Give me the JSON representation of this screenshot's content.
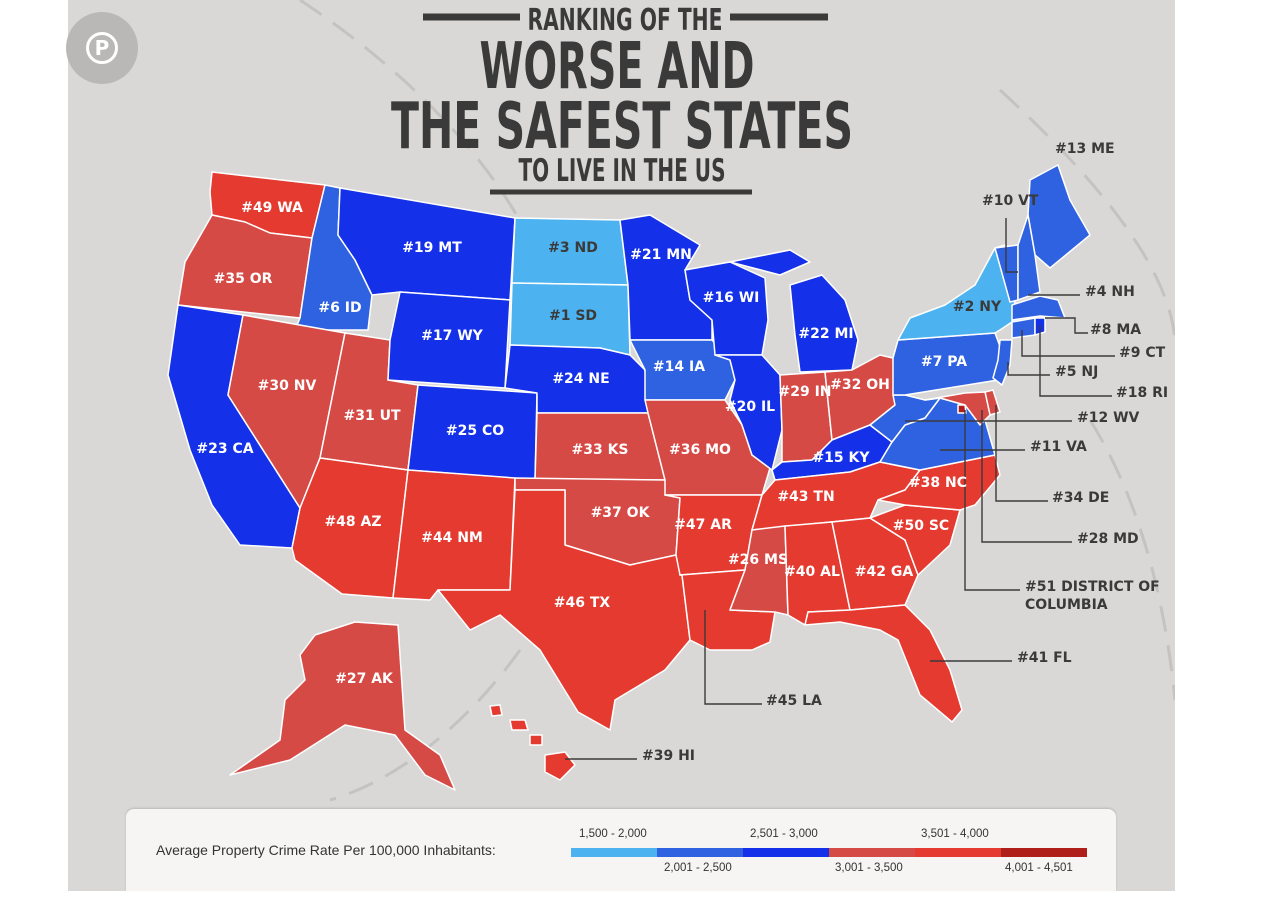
{
  "title": {
    "line1": "RANKING OF THE",
    "line2": "WORSE AND",
    "line3": "THE SAFEST STATES",
    "line4": "TO LIVE IN THE US"
  },
  "legend": {
    "title": "Average Property Crime Rate Per 100,000 Inhabitants:",
    "bins": [
      {
        "label": "1,500 - 2,000",
        "color": "#4db3f0"
      },
      {
        "label": "2,001 - 2,500",
        "color": "#2f62e0"
      },
      {
        "label": "2,501 - 3,000",
        "color": "#1430e8"
      },
      {
        "label": "3,001 - 3,500",
        "color": "#d64a46"
      },
      {
        "label": "3,501 - 4,000",
        "color": "#e53a30"
      },
      {
        "label": "4,001 - 4,501",
        "color": "#b01e1a"
      }
    ]
  },
  "states": [
    {
      "id": "WA",
      "label": "#49 WA",
      "rank": 49,
      "bin": 4
    },
    {
      "id": "OR",
      "label": "#35 OR",
      "rank": 35,
      "bin": 3
    },
    {
      "id": "CA",
      "label": "#23 CA",
      "rank": 23,
      "bin": 2
    },
    {
      "id": "ID",
      "label": "#6 ID",
      "rank": 6,
      "bin": 1
    },
    {
      "id": "NV",
      "label": "#30 NV",
      "rank": 30,
      "bin": 3
    },
    {
      "id": "UT",
      "label": "#31 UT",
      "rank": 31,
      "bin": 3
    },
    {
      "id": "AZ",
      "label": "#48 AZ",
      "rank": 48,
      "bin": 4
    },
    {
      "id": "MT",
      "label": "#19 MT",
      "rank": 19,
      "bin": 2
    },
    {
      "id": "WY",
      "label": "#17 WY",
      "rank": 17,
      "bin": 2
    },
    {
      "id": "CO",
      "label": "#25 CO",
      "rank": 25,
      "bin": 2
    },
    {
      "id": "NM",
      "label": "#44 NM",
      "rank": 44,
      "bin": 4
    },
    {
      "id": "ND",
      "label": "#3 ND",
      "rank": 3,
      "bin": 0
    },
    {
      "id": "SD",
      "label": "#1 SD",
      "rank": 1,
      "bin": 0
    },
    {
      "id": "NE",
      "label": "#24 NE",
      "rank": 24,
      "bin": 2
    },
    {
      "id": "KS",
      "label": "#33 KS",
      "rank": 33,
      "bin": 3
    },
    {
      "id": "OK",
      "label": "#37 OK",
      "rank": 37,
      "bin": 3
    },
    {
      "id": "TX",
      "label": "#46 TX",
      "rank": 46,
      "bin": 4
    },
    {
      "id": "MN",
      "label": "#21 MN",
      "rank": 21,
      "bin": 2
    },
    {
      "id": "IA",
      "label": "#14 IA",
      "rank": 14,
      "bin": 1
    },
    {
      "id": "MO",
      "label": "#36 MO",
      "rank": 36,
      "bin": 3
    },
    {
      "id": "AR",
      "label": "#47 AR",
      "rank": 47,
      "bin": 4
    },
    {
      "id": "LA",
      "label": "#45 LA",
      "rank": 45,
      "bin": 4
    },
    {
      "id": "WI",
      "label": "#16 WI",
      "rank": 16,
      "bin": 2
    },
    {
      "id": "IL",
      "label": "#20 IL",
      "rank": 20,
      "bin": 2
    },
    {
      "id": "MI",
      "label": "#22 MI",
      "rank": 22,
      "bin": 2
    },
    {
      "id": "IN",
      "label": "#29 IN",
      "rank": 29,
      "bin": 3
    },
    {
      "id": "OH",
      "label": "#32 OH",
      "rank": 32,
      "bin": 3
    },
    {
      "id": "KY",
      "label": "#15 KY",
      "rank": 15,
      "bin": 2
    },
    {
      "id": "TN",
      "label": "#43 TN",
      "rank": 43,
      "bin": 4
    },
    {
      "id": "MS",
      "label": "#26 MS",
      "rank": 26,
      "bin": 3
    },
    {
      "id": "AL",
      "label": "#40 AL",
      "rank": 40,
      "bin": 4
    },
    {
      "id": "GA",
      "label": "#42 GA",
      "rank": 42,
      "bin": 4
    },
    {
      "id": "FL",
      "label": "#41 FL",
      "rank": 41,
      "bin": 4
    },
    {
      "id": "SC",
      "label": "#50 SC",
      "rank": 50,
      "bin": 4
    },
    {
      "id": "NC",
      "label": "#38 NC",
      "rank": 38,
      "bin": 4
    },
    {
      "id": "VA",
      "label": "#11 VA",
      "rank": 11,
      "bin": 1
    },
    {
      "id": "WV",
      "label": "#12 WV",
      "rank": 12,
      "bin": 1
    },
    {
      "id": "PA",
      "label": "#7 PA",
      "rank": 7,
      "bin": 1
    },
    {
      "id": "NY",
      "label": "#2 NY",
      "rank": 2,
      "bin": 0
    },
    {
      "id": "ME",
      "label": "#13 ME",
      "rank": 13,
      "bin": 1
    },
    {
      "id": "VT",
      "label": "#10 VT",
      "rank": 10,
      "bin": 1
    },
    {
      "id": "NH",
      "label": "#4 NH",
      "rank": 4,
      "bin": 1
    },
    {
      "id": "MA",
      "label": "#8 MA",
      "rank": 8,
      "bin": 1
    },
    {
      "id": "CT",
      "label": "#9 CT",
      "rank": 9,
      "bin": 1
    },
    {
      "id": "NJ",
      "label": "#5 NJ",
      "rank": 5,
      "bin": 1
    },
    {
      "id": "RI",
      "label": "#18 RI",
      "rank": 18,
      "bin": 2
    },
    {
      "id": "DE",
      "label": "#34 DE",
      "rank": 34,
      "bin": 3
    },
    {
      "id": "MD",
      "label": "#28 MD",
      "rank": 28,
      "bin": 3
    },
    {
      "id": "DC",
      "label": "#51 DISTRICT OF COLUMBIA",
      "line1": "#51 DISTRICT OF",
      "line2": "COLUMBIA",
      "rank": 51,
      "bin": 5
    },
    {
      "id": "AK",
      "label": "#27 AK",
      "rank": 27,
      "bin": 3
    },
    {
      "id": "HI",
      "label": "#39 HI",
      "rank": 39,
      "bin": 4
    }
  ]
}
